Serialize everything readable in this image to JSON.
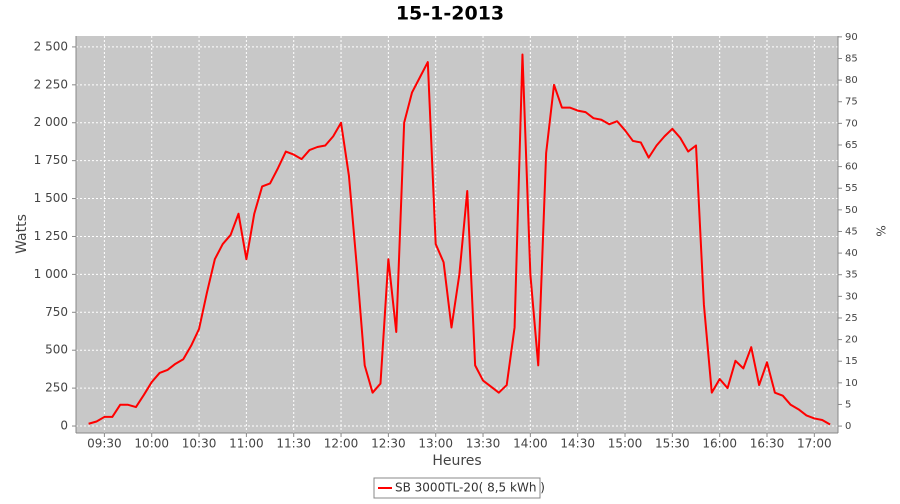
{
  "chart_data": {
    "type": "line",
    "title": "15-1-2013",
    "x_label": "Heures",
    "y_label": "Watts",
    "y2_label": "%",
    "x": [
      "09:20",
      "09:25",
      "09:30",
      "09:35",
      "09:40",
      "09:45",
      "09:50",
      "09:55",
      "10:00",
      "10:05",
      "10:10",
      "10:15",
      "10:20",
      "10:25",
      "10:30",
      "10:35",
      "10:40",
      "10:45",
      "10:50",
      "10:55",
      "11:00",
      "11:05",
      "11:10",
      "11:15",
      "11:20",
      "11:25",
      "11:30",
      "11:35",
      "11:40",
      "11:45",
      "11:50",
      "11:55",
      "12:00",
      "12:05",
      "12:10",
      "12:15",
      "12:20",
      "12:25",
      "12:30",
      "12:35",
      "12:40",
      "12:45",
      "12:50",
      "12:55",
      "13:00",
      "13:05",
      "13:10",
      "13:15",
      "13:20",
      "13:25",
      "13:30",
      "13:35",
      "13:40",
      "13:45",
      "13:50",
      "13:55",
      "14:00",
      "14:05",
      "14:10",
      "14:15",
      "14:20",
      "14:25",
      "14:30",
      "14:35",
      "14:40",
      "14:45",
      "14:50",
      "14:55",
      "15:00",
      "15:05",
      "15:10",
      "15:15",
      "15:20",
      "15:25",
      "15:30",
      "15:35",
      "15:40",
      "15:45",
      "15:50",
      "15:55",
      "16:00",
      "16:05",
      "16:10",
      "16:15",
      "16:20",
      "16:25",
      "16:30",
      "16:35",
      "16:40",
      "16:45",
      "16:50",
      "16:55",
      "17:00",
      "17:05",
      "17:10"
    ],
    "series": [
      {
        "name": "SB 3000TL-20( 8,5 kWh )",
        "color": "#ff0000",
        "values": [
          15,
          30,
          60,
          60,
          140,
          140,
          125,
          205,
          290,
          350,
          370,
          410,
          440,
          530,
          640,
          880,
          1100,
          1200,
          1260,
          1400,
          1100,
          1400,
          1580,
          1600,
          1700,
          1810,
          1790,
          1760,
          1820,
          1840,
          1850,
          1910,
          2000,
          1650,
          1050,
          400,
          220,
          280,
          1100,
          620,
          2000,
          2200,
          2300,
          2400,
          1200,
          1080,
          650,
          1000,
          1550,
          400,
          300,
          260,
          220,
          270,
          650,
          2450,
          1000,
          400,
          1800,
          2250,
          2100,
          2100,
          2080,
          2070,
          2030,
          2020,
          1990,
          2010,
          1950,
          1880,
          1870,
          1770,
          1850,
          1910,
          1960,
          1900,
          1810,
          1850,
          800,
          220,
          310,
          250,
          430,
          380,
          520,
          270,
          420,
          220,
          200,
          140,
          110,
          70,
          50,
          40,
          10
        ]
      }
    ],
    "xlim": [
      "09:12",
      "17:15"
    ],
    "xticks": [
      "09:30",
      "10:00",
      "10:30",
      "11:00",
      "11:30",
      "12:00",
      "12:30",
      "13:00",
      "13:30",
      "14:00",
      "14:30",
      "15:00",
      "15:30",
      "16:00",
      "16:30",
      "17:00"
    ],
    "ylim": [
      -46,
      2572
    ],
    "yticks": [
      0,
      250,
      500,
      750,
      {
        "value": 1000,
        "label": "1 000"
      },
      {
        "value": 1250,
        "label": "1 250"
      },
      {
        "value": 1500,
        "label": "1 500"
      },
      {
        "value": 1750,
        "label": "1 750"
      },
      {
        "value": 2000,
        "label": "2 000"
      },
      {
        "value": 2250,
        "label": "2 250"
      },
      {
        "value": 2500,
        "label": "2 500"
      }
    ],
    "y2lim": [
      -1.6,
      90.2
    ],
    "y2ticks": [
      0,
      5,
      10,
      15,
      20,
      25,
      30,
      35,
      40,
      45,
      50,
      55,
      60,
      65,
      70,
      75,
      80,
      85,
      90
    ],
    "grid": true,
    "legend_position": "bottom"
  }
}
